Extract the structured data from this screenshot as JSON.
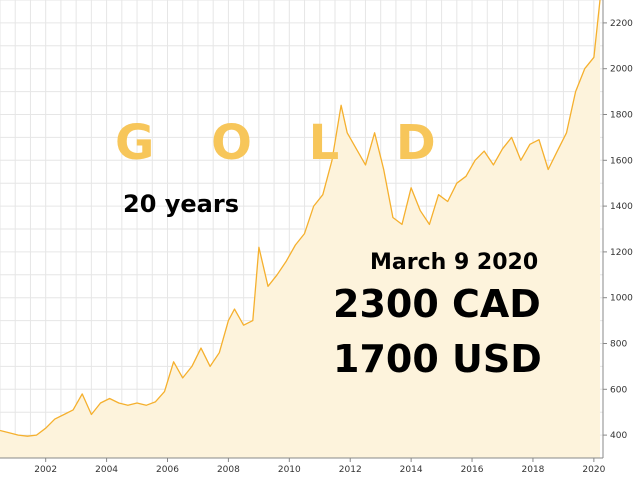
{
  "headline": {
    "title": "G O L D",
    "subtitle": "20 years",
    "date": "March 9 2020",
    "price_cad": "2300 CAD",
    "price_usd": "1700 USD"
  },
  "colors": {
    "line": "#f5b02e",
    "fill": "#fdf3dc",
    "grid": "#e6e6e6",
    "title": "#f7c65a"
  },
  "chart_data": {
    "type": "area",
    "xlim": [
      2000.5,
      2020.3
    ],
    "ylim": [
      300,
      2300
    ],
    "xticks": [
      "2002",
      "2004",
      "2006",
      "2008",
      "2010",
      "2012",
      "2014",
      "2016",
      "2018",
      "2020"
    ],
    "yticks": [
      "400",
      "600",
      "800",
      "1000",
      "1200",
      "1400",
      "1600",
      "1800",
      "2000",
      "2200"
    ],
    "grid": true,
    "y_axis_side": "right",
    "legend": "none",
    "series": [
      {
        "x": [
          2000.5,
          2000.8,
          2001.1,
          2001.4,
          2001.7,
          2002.0,
          2002.3,
          2002.6,
          2002.9,
          2003.2,
          2003.5,
          2003.8,
          2004.1,
          2004.4,
          2004.7,
          2005.0,
          2005.3,
          2005.6,
          2005.9,
          2006.2,
          2006.5,
          2006.8,
          2007.1,
          2007.4,
          2007.7,
          2008.0,
          2008.2,
          2008.5,
          2008.8,
          2009.0,
          2009.3,
          2009.6,
          2009.9,
          2010.2,
          2010.5,
          2010.8,
          2011.1,
          2011.4,
          2011.7,
          2011.9,
          2012.2,
          2012.5,
          2012.8,
          2013.1,
          2013.4,
          2013.7,
          2014.0,
          2014.3,
          2014.6,
          2014.9,
          2015.2,
          2015.5,
          2015.8,
          2016.1,
          2016.4,
          2016.7,
          2017.0,
          2017.3,
          2017.6,
          2017.9,
          2018.2,
          2018.5,
          2018.8,
          2019.1,
          2019.4,
          2019.7,
          2020.0,
          2020.2
        ],
        "y": [
          420,
          410,
          400,
          395,
          400,
          430,
          470,
          490,
          510,
          580,
          490,
          540,
          560,
          540,
          530,
          540,
          530,
          545,
          590,
          720,
          650,
          700,
          780,
          700,
          760,
          900,
          950,
          880,
          900,
          1220,
          1050,
          1100,
          1160,
          1230,
          1280,
          1400,
          1450,
          1600,
          1840,
          1720,
          1650,
          1580,
          1720,
          1560,
          1350,
          1320,
          1480,
          1380,
          1320,
          1450,
          1420,
          1500,
          1530,
          1600,
          1640,
          1580,
          1650,
          1700,
          1600,
          1670,
          1690,
          1560,
          1640,
          1720,
          1900,
          2000,
          2050,
          2300
        ]
      }
    ]
  }
}
